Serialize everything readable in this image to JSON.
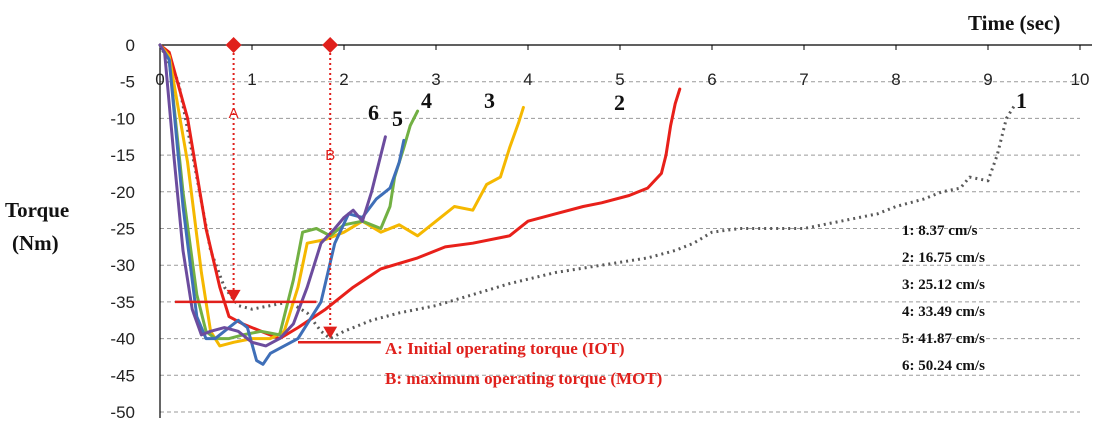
{
  "chart_data": {
    "type": "line",
    "xlabel": "Time (sec)",
    "ylabel_line1": "Torque",
    "ylabel_line2": "(Nm)",
    "xlim": [
      0,
      10
    ],
    "ylim": [
      -50,
      0
    ],
    "x_ticks": [
      0,
      1,
      2,
      3,
      4,
      5,
      6,
      7,
      8,
      9,
      10
    ],
    "y_ticks": [
      0,
      -5,
      -10,
      -15,
      -20,
      -25,
      -30,
      -35,
      -40,
      -45,
      -50
    ],
    "grid": "horizontal dashed",
    "legend_placement": "right",
    "series": [
      {
        "name": "1: 8.37 cm/s",
        "label": "1",
        "color": "#5a5a5a",
        "style": "dotted",
        "points": [
          [
            0,
            0
          ],
          [
            0.2,
            -5
          ],
          [
            0.4,
            -18
          ],
          [
            0.55,
            -28
          ],
          [
            0.7,
            -33
          ],
          [
            0.85,
            -35.5
          ],
          [
            1.0,
            -36
          ],
          [
            1.2,
            -35.5
          ],
          [
            1.4,
            -35
          ],
          [
            1.6,
            -36.5
          ],
          [
            1.75,
            -39
          ],
          [
            1.85,
            -40
          ],
          [
            2.0,
            -39
          ],
          [
            2.3,
            -37.5
          ],
          [
            2.6,
            -36.5
          ],
          [
            3.0,
            -35.5
          ],
          [
            3.4,
            -34
          ],
          [
            3.8,
            -32.5
          ],
          [
            4.3,
            -31
          ],
          [
            4.8,
            -30
          ],
          [
            5.3,
            -29
          ],
          [
            5.6,
            -28
          ],
          [
            5.8,
            -27
          ],
          [
            6.0,
            -25.5
          ],
          [
            6.3,
            -25
          ],
          [
            7.0,
            -25
          ],
          [
            7.4,
            -24
          ],
          [
            7.8,
            -23
          ],
          [
            8.0,
            -22
          ],
          [
            8.3,
            -21
          ],
          [
            8.5,
            -20
          ],
          [
            8.7,
            -19.5
          ],
          [
            8.8,
            -18
          ],
          [
            9.0,
            -18.5
          ],
          [
            9.1,
            -15
          ],
          [
            9.2,
            -10
          ],
          [
            9.3,
            -8
          ]
        ]
      },
      {
        "name": "2: 16.75 cm/s",
        "label": "2",
        "color": "#e8201a",
        "style": "solid",
        "points": [
          [
            0,
            0
          ],
          [
            0.1,
            -1
          ],
          [
            0.3,
            -10
          ],
          [
            0.5,
            -25
          ],
          [
            0.65,
            -33
          ],
          [
            0.75,
            -37
          ],
          [
            0.9,
            -38
          ],
          [
            1.1,
            -39
          ],
          [
            1.3,
            -40
          ],
          [
            1.5,
            -38.5
          ],
          [
            1.8,
            -36
          ],
          [
            2.1,
            -33
          ],
          [
            2.4,
            -30.5
          ],
          [
            2.8,
            -29
          ],
          [
            3.1,
            -27.5
          ],
          [
            3.4,
            -27
          ],
          [
            3.8,
            -26
          ],
          [
            4.0,
            -24
          ],
          [
            4.3,
            -23
          ],
          [
            4.6,
            -22
          ],
          [
            4.8,
            -21.5
          ],
          [
            5.1,
            -20.5
          ],
          [
            5.3,
            -19.5
          ],
          [
            5.45,
            -17.5
          ],
          [
            5.5,
            -15
          ],
          [
            5.55,
            -11
          ],
          [
            5.6,
            -8
          ],
          [
            5.65,
            -6
          ]
        ]
      },
      {
        "name": "3: 25.12 cm/s",
        "label": "3",
        "color": "#f5b800",
        "style": "solid",
        "points": [
          [
            0,
            0
          ],
          [
            0.1,
            -1.5
          ],
          [
            0.3,
            -16
          ],
          [
            0.45,
            -31
          ],
          [
            0.55,
            -39
          ],
          [
            0.65,
            -41
          ],
          [
            0.8,
            -40.5
          ],
          [
            1.0,
            -40
          ],
          [
            1.2,
            -40
          ],
          [
            1.35,
            -39
          ],
          [
            1.5,
            -33
          ],
          [
            1.6,
            -27
          ],
          [
            1.8,
            -26.5
          ],
          [
            2.0,
            -25.5
          ],
          [
            2.2,
            -24
          ],
          [
            2.4,
            -25.5
          ],
          [
            2.6,
            -24.5
          ],
          [
            2.8,
            -26
          ],
          [
            3.0,
            -24
          ],
          [
            3.2,
            -22
          ],
          [
            3.4,
            -22.5
          ],
          [
            3.55,
            -19
          ],
          [
            3.7,
            -18
          ],
          [
            3.8,
            -14
          ],
          [
            3.9,
            -10.5
          ],
          [
            3.95,
            -8.5
          ]
        ]
      },
      {
        "name": "4: 33.49 cm/s",
        "label": "4",
        "color": "#72b043",
        "style": "solid",
        "points": [
          [
            0,
            0
          ],
          [
            0.1,
            -2
          ],
          [
            0.25,
            -20
          ],
          [
            0.4,
            -34
          ],
          [
            0.5,
            -39
          ],
          [
            0.6,
            -40
          ],
          [
            0.75,
            -40
          ],
          [
            0.9,
            -39.5
          ],
          [
            1.1,
            -39
          ],
          [
            1.3,
            -39.5
          ],
          [
            1.45,
            -32
          ],
          [
            1.55,
            -25.5
          ],
          [
            1.7,
            -25
          ],
          [
            1.85,
            -26
          ],
          [
            2.0,
            -24.5
          ],
          [
            2.2,
            -24
          ],
          [
            2.4,
            -25
          ],
          [
            2.5,
            -22
          ],
          [
            2.55,
            -18
          ],
          [
            2.65,
            -14
          ],
          [
            2.72,
            -11
          ],
          [
            2.8,
            -9
          ]
        ]
      },
      {
        "name": "5: 41.87 cm/s",
        "label": "5",
        "color": "#3f6fb8",
        "style": "solid",
        "points": [
          [
            0,
            0
          ],
          [
            0.1,
            -2
          ],
          [
            0.25,
            -22
          ],
          [
            0.4,
            -37
          ],
          [
            0.5,
            -40
          ],
          [
            0.6,
            -40
          ],
          [
            0.75,
            -38.5
          ],
          [
            0.85,
            -37.5
          ],
          [
            0.95,
            -38.5
          ],
          [
            1.05,
            -43
          ],
          [
            1.12,
            -43.5
          ],
          [
            1.2,
            -42
          ],
          [
            1.35,
            -41
          ],
          [
            1.5,
            -40
          ],
          [
            1.6,
            -38
          ],
          [
            1.75,
            -35
          ],
          [
            1.9,
            -27
          ],
          [
            2.05,
            -23
          ],
          [
            2.2,
            -23.5
          ],
          [
            2.35,
            -21
          ],
          [
            2.5,
            -19.5
          ],
          [
            2.6,
            -16
          ],
          [
            2.65,
            -13
          ]
        ]
      },
      {
        "name": "6: 50.24 cm/s",
        "label": "6",
        "color": "#6c4c9e",
        "style": "solid",
        "points": [
          [
            0,
            0
          ],
          [
            0.05,
            -1
          ],
          [
            0.15,
            -15
          ],
          [
            0.25,
            -28
          ],
          [
            0.35,
            -36
          ],
          [
            0.45,
            -39.5
          ],
          [
            0.55,
            -39
          ],
          [
            0.7,
            -38.5
          ],
          [
            0.85,
            -39
          ],
          [
            1.0,
            -40.5
          ],
          [
            1.15,
            -41
          ],
          [
            1.3,
            -40
          ],
          [
            1.45,
            -38
          ],
          [
            1.6,
            -33
          ],
          [
            1.75,
            -27
          ],
          [
            1.9,
            -25
          ],
          [
            2.0,
            -23.5
          ],
          [
            2.1,
            -22.5
          ],
          [
            2.2,
            -24
          ],
          [
            2.3,
            -20
          ],
          [
            2.4,
            -15
          ],
          [
            2.45,
            -12.5
          ]
        ]
      }
    ],
    "legend": [
      "1:  8.37 cm/s",
      "2: 16.75 cm/s",
      "3: 25.12 cm/s",
      "4: 33.49 cm/s",
      "5: 41.87 cm/s",
      "6: 50.24 cm/s"
    ],
    "annotations": {
      "marker_A": {
        "letter": "A",
        "x": 0.8,
        "y_from": 0,
        "y_to": -35
      },
      "marker_B": {
        "letter": "B",
        "x": 1.85,
        "y_from": 0,
        "y_to": -40
      },
      "iot_line": {
        "y": -35,
        "x_from": 0,
        "x_to": 1.7
      },
      "mot_line": {
        "y": -40.5,
        "x_from": 1.5,
        "x_to": 2.4
      },
      "text_A": "A: Initial operating torque (IOT)",
      "text_B": "B: maximum operating torque (MOT)"
    },
    "colors": {
      "annotation": "#e0201c",
      "grid": "#9a9a9a",
      "axis": "#000000"
    }
  }
}
